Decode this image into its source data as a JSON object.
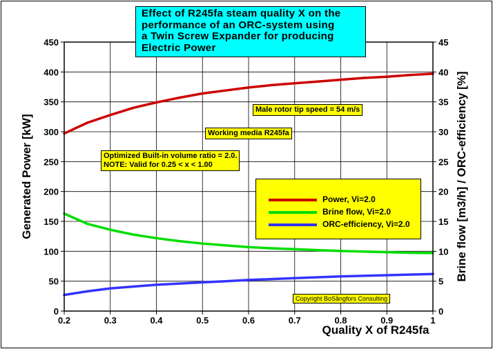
{
  "title_lines": [
    "Effect of R245fa steam quality X on the",
    "performance of an ORC-system using",
    "a Twin Screw Expander for producing",
    "Electric Power"
  ],
  "annotations": {
    "tip_speed": "Male rotor tip speed = 54 m/s",
    "working_media": "Working media R245fa",
    "volume_ratio_line1": "Optimized Built-in volume ratio = 2.0.",
    "volume_ratio_line2": "NOTE: Valid for 0.25 < x < 1.00",
    "copyright": "Copyright BoSångfors Consulting"
  },
  "legend": [
    {
      "label": "Power, Vi=2.0",
      "color": "#cc0000"
    },
    {
      "label": "Brine flow, Vi=2.0",
      "color": "#00dd00"
    },
    {
      "label": "ORC-efficiency, Vi=2.0",
      "color": "#3333ff"
    }
  ],
  "chart_data": {
    "type": "line",
    "xlabel": "Quality X of R245fa",
    "ylabel": "Generated Power [kW]",
    "y2label": "Brine flow [m3/h] / ORC-efficiency [%]",
    "xlim": [
      0.2,
      1.0
    ],
    "ylim": [
      0,
      450
    ],
    "y2lim": [
      0,
      45
    ],
    "xticks": [
      "0.2",
      "0.3",
      "0.4",
      "0.5",
      "0.6",
      "0.7",
      "0.8",
      "0.9",
      "1"
    ],
    "yticks": [
      "0",
      "50",
      "100",
      "150",
      "200",
      "250",
      "300",
      "350",
      "400",
      "450"
    ],
    "y2ticks": [
      "0",
      "5",
      "10",
      "15",
      "20",
      "25",
      "30",
      "35",
      "40",
      "45"
    ],
    "grid": true,
    "series": [
      {
        "name": "Power, Vi=2.0",
        "axis": "left",
        "color": "#cc0000",
        "x": [
          0.2,
          0.25,
          0.3,
          0.35,
          0.4,
          0.45,
          0.5,
          0.55,
          0.6,
          0.65,
          0.7,
          0.75,
          0.8,
          0.85,
          0.9,
          0.95,
          1.0
        ],
        "y": [
          297,
          315,
          328,
          340,
          349,
          357,
          364,
          369,
          374,
          378,
          381,
          384,
          387,
          390,
          392,
          395,
          397
        ]
      },
      {
        "name": "Brine flow, Vi=2.0",
        "axis": "right",
        "color": "#00dd00",
        "x": [
          0.2,
          0.25,
          0.3,
          0.35,
          0.4,
          0.45,
          0.5,
          0.55,
          0.6,
          0.65,
          0.7,
          0.75,
          0.8,
          0.85,
          0.9,
          0.95,
          1.0
        ],
        "y": [
          16.3,
          14.6,
          13.6,
          12.8,
          12.2,
          11.7,
          11.3,
          11.0,
          10.7,
          10.5,
          10.35,
          10.2,
          10.05,
          9.95,
          9.85,
          9.75,
          9.7
        ]
      },
      {
        "name": "ORC-efficiency, Vi=2.0",
        "axis": "right",
        "color": "#3333ff",
        "x": [
          0.2,
          0.25,
          0.3,
          0.35,
          0.4,
          0.45,
          0.5,
          0.55,
          0.6,
          0.65,
          0.7,
          0.75,
          0.8,
          0.85,
          0.9,
          0.95,
          1.0
        ],
        "y": [
          2.7,
          3.3,
          3.8,
          4.1,
          4.4,
          4.6,
          4.8,
          5.0,
          5.2,
          5.35,
          5.5,
          5.65,
          5.8,
          5.9,
          6.0,
          6.1,
          6.2
        ]
      }
    ]
  }
}
